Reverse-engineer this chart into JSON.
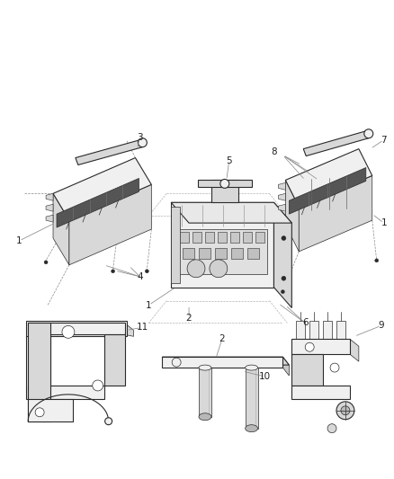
{
  "background_color": "#ffffff",
  "line_color": "#2a2a2a",
  "label_color": "#222222",
  "fig_width": 4.38,
  "fig_height": 5.33,
  "dpi": 100,
  "label_fontsize": 7.5,
  "thin_lw": 0.5,
  "med_lw": 0.8,
  "thick_lw": 1.1,
  "gray_line": "#888888",
  "dark_gray": "#444444",
  "mid_gray": "#888888",
  "light_gray": "#cccccc",
  "face_light": "#f0f0f0",
  "face_mid": "#d8d8d8",
  "face_dark": "#b8b8b8",
  "connector_dark": "#555555"
}
